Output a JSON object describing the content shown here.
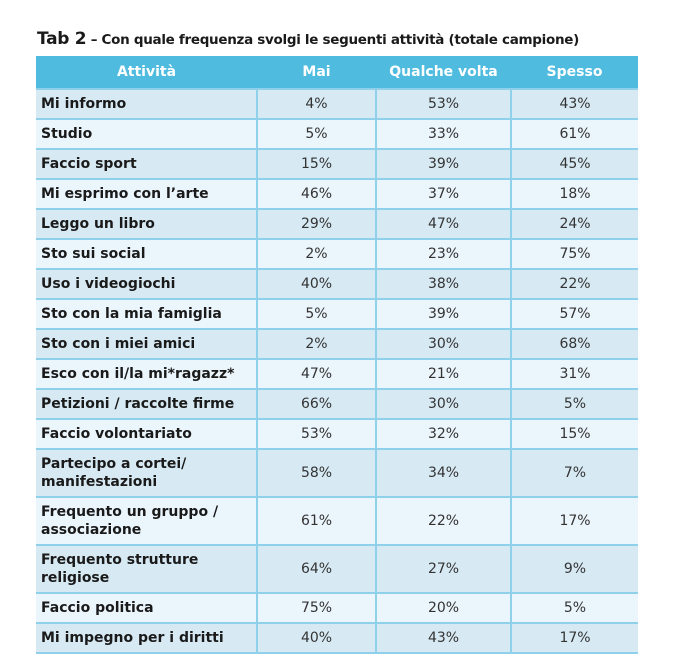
{
  "title": {
    "tab": "Tab 2",
    "text": " – Con quale frequenza svolgi le seguenti attività (totale campione)"
  },
  "table": {
    "headers": [
      "Attività",
      "Mai",
      "Qualche volta",
      "Spesso"
    ],
    "rows": [
      [
        "Mi informo",
        "4%",
        "53%",
        "43%"
      ],
      [
        "Studio",
        "5%",
        "33%",
        "61%"
      ],
      [
        "Faccio sport",
        "15%",
        "39%",
        "45%"
      ],
      [
        "Mi esprimo con l’arte",
        "46%",
        "37%",
        "18%"
      ],
      [
        "Leggo un libro",
        "29%",
        "47%",
        "24%"
      ],
      [
        "Sto sui social",
        "2%",
        "23%",
        "75%"
      ],
      [
        "Uso i videogiochi",
        "40%",
        "38%",
        "22%"
      ],
      [
        "Sto con la mia famiglia",
        "5%",
        "39%",
        "57%"
      ],
      [
        "Sto con i miei amici",
        "2%",
        "30%",
        "68%"
      ],
      [
        "Esco con il/la mi*ragazz*",
        "47%",
        "21%",
        "31%"
      ],
      [
        "Petizioni / raccolte firme",
        "66%",
        "30%",
        "5%"
      ],
      [
        "Faccio volontariato",
        "53%",
        "32%",
        "15%"
      ],
      [
        "Partecipo a cortei/ manifestazioni",
        "58%",
        "34%",
        "7%"
      ],
      [
        "Frequento un gruppo / associazione",
        "61%",
        "22%",
        "17%"
      ],
      [
        "Frequento strutture religiose",
        "64%",
        "27%",
        "9%"
      ],
      [
        "Faccio politica",
        "75%",
        "20%",
        "5%"
      ],
      [
        "Mi impegno per i diritti",
        "40%",
        "43%",
        "17%"
      ]
    ]
  },
  "colors": {
    "header": "#4fbcdf",
    "row_dark": "#d7eaf4",
    "row_light": "#ebf5fc",
    "grid": "#8fd0ea"
  }
}
